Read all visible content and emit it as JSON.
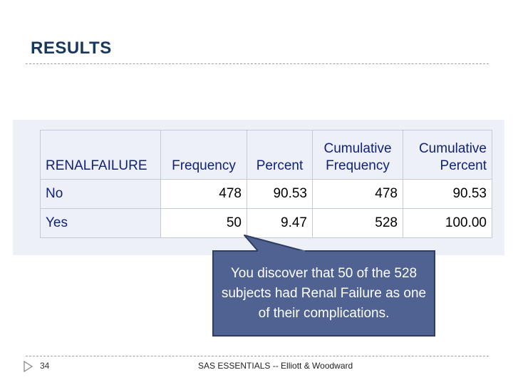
{
  "slide": {
    "title": "RESULTS",
    "page_number": "34",
    "footer": "SAS ESSENTIALS -- Elliott & Woodward"
  },
  "table": {
    "headers": [
      {
        "line1": "",
        "line2": "RENALFAILURE"
      },
      {
        "line1": "",
        "line2": "Frequency"
      },
      {
        "line1": "",
        "line2": "Percent"
      },
      {
        "line1": "Cumulative",
        "line2": "Frequency"
      },
      {
        "line1": "Cumulative",
        "line2": "Percent"
      }
    ],
    "rows": [
      {
        "label": "No",
        "frequency": "478",
        "percent": "90.53",
        "cum_frequency": "478",
        "cum_percent": "90.53"
      },
      {
        "label": "Yes",
        "frequency": "50",
        "percent": "9.47",
        "cum_frequency": "528",
        "cum_percent": "100.00"
      }
    ]
  },
  "callout": {
    "text": "You discover that 50 of the 528 subjects had Renal Failure as one of their complications."
  },
  "colors": {
    "title": "#17375e",
    "header_text": "#112277",
    "callout_fill": "#4f6291",
    "table_background": "#edf0f6"
  }
}
